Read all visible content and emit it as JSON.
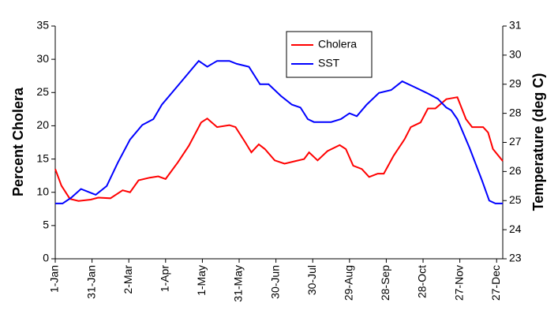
{
  "chart_data": {
    "type": "line",
    "y_label": "Percent Cholera",
    "y2_label": "Temperature (deg C)",
    "xlim": [
      1,
      366
    ],
    "xticks": [
      {
        "value": 1,
        "label": "1-Jan"
      },
      {
        "value": 31,
        "label": "31-Jan"
      },
      {
        "value": 61,
        "label": "2-Mar"
      },
      {
        "value": 91,
        "label": "1-Apr"
      },
      {
        "value": 121,
        "label": "1-May"
      },
      {
        "value": 151,
        "label": "31-May"
      },
      {
        "value": 181,
        "label": "30-Jun"
      },
      {
        "value": 211,
        "label": "30-Jul"
      },
      {
        "value": 241,
        "label": "29-Aug"
      },
      {
        "value": 271,
        "label": "28-Sep"
      },
      {
        "value": 301,
        "label": "28-Oct"
      },
      {
        "value": 331,
        "label": "27-Nov"
      },
      {
        "value": 361,
        "label": "27-Dec"
      }
    ],
    "ylim": [
      0,
      35
    ],
    "yticks": [
      0,
      5,
      10,
      15,
      20,
      25,
      30,
      35
    ],
    "y2lim": [
      23,
      31
    ],
    "y2ticks": [
      23,
      24,
      25,
      26,
      27,
      28,
      29,
      30,
      31
    ],
    "legend": "top",
    "series": [
      {
        "name": "Cholera",
        "color": "#ff0000",
        "x": [
          1,
          6,
          13,
          20,
          30,
          36,
          46,
          56,
          62,
          69,
          78,
          85,
          91,
          101,
          110,
          120,
          125,
          133,
          143,
          148,
          156,
          161,
          167,
          172,
          180,
          188,
          197,
          204,
          208,
          215,
          223,
          233,
          238,
          244,
          251,
          257,
          264,
          269,
          277,
          286,
          291,
          299,
          305,
          311,
          320,
          329,
          336,
          341,
          350,
          354,
          358,
          366
        ],
        "values": [
          13.5,
          11,
          9,
          8.7,
          8.9,
          9.2,
          9.1,
          10.3,
          10.0,
          11.8,
          12.2,
          12.4,
          12.0,
          14.5,
          17,
          20.5,
          21.1,
          19.8,
          20.1,
          19.8,
          17.5,
          16.0,
          17.2,
          16.5,
          14.8,
          14.3,
          14.7,
          15.0,
          16.0,
          14.8,
          16.2,
          17.1,
          16.5,
          14.0,
          13.5,
          12.3,
          12.8,
          12.8,
          15.5,
          18,
          19.8,
          20.5,
          22.6,
          22.6,
          24,
          24.3,
          21,
          19.8,
          19.8,
          19,
          16.5,
          14.7
        ]
      },
      {
        "name": "SST",
        "color": "#0000ff",
        "axis": "y2",
        "x": [
          1,
          7,
          14,
          22,
          28,
          34,
          43,
          52,
          62,
          72,
          81,
          88,
          94,
          104,
          114,
          118,
          125,
          133,
          143,
          149,
          159,
          168,
          175,
          185,
          194,
          201,
          207,
          212,
          220,
          226,
          234,
          241,
          247,
          255,
          265,
          275,
          284,
          294,
          304,
          313,
          320,
          324,
          329,
          339,
          349,
          355,
          360,
          366
        ],
        "values": [
          24.9,
          24.9,
          25.1,
          25.4,
          25.3,
          25.2,
          25.5,
          26.3,
          27.1,
          27.6,
          27.8,
          28.3,
          28.6,
          29.1,
          29.6,
          29.8,
          29.6,
          29.8,
          29.8,
          29.7,
          29.6,
          29.0,
          29.0,
          28.6,
          28.3,
          28.2,
          27.8,
          27.7,
          27.7,
          27.7,
          27.8,
          28.0,
          27.9,
          28.3,
          28.7,
          28.8,
          29.1,
          28.9,
          28.7,
          28.5,
          28.2,
          28.1,
          27.8,
          26.8,
          25.7,
          25.0,
          24.9,
          24.9
        ]
      }
    ]
  }
}
